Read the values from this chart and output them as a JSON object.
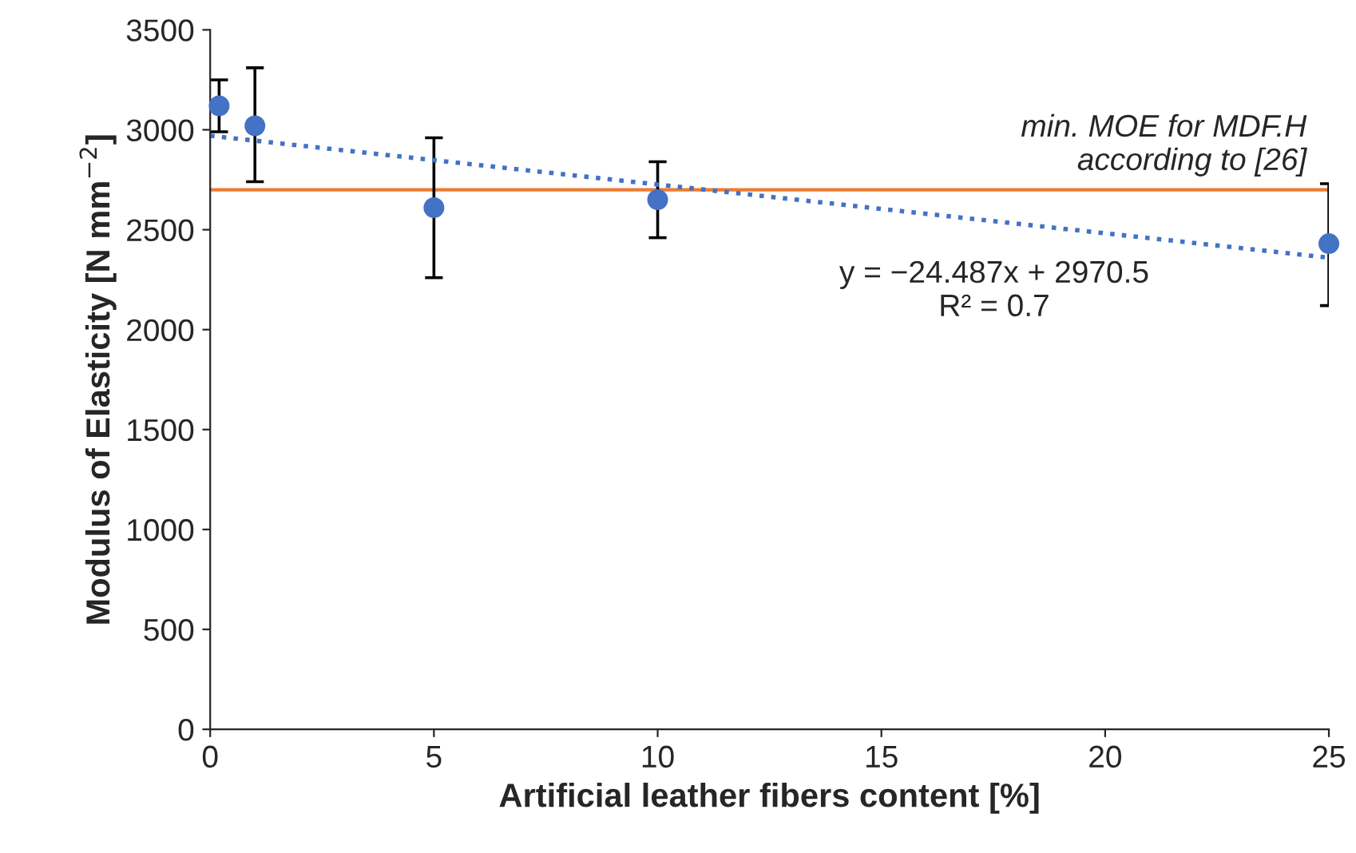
{
  "chart_data": {
    "type": "scatter",
    "xlabel": "Artificial leather fibers content [%]",
    "ylabel": "Modulus of Elasticity [N mm$^{−2}$]",
    "x": [
      0.2,
      1,
      5,
      10,
      25
    ],
    "series": [
      {
        "color": "#4472c4",
        "marker": "circle",
        "values": [
          3120,
          3020,
          2610,
          2650,
          2430
        ],
        "errors": [
          [
            2990,
            3250
          ],
          [
            2740,
            3310
          ],
          [
            2260,
            2960
          ],
          [
            2460,
            2840
          ],
          [
            2120,
            2730
          ]
        ]
      },
      {
        "type": "line",
        "color": "#4472c4",
        "x": [
          0,
          25
        ],
        "values": [
          2970,
          2360
        ],
        "line_style": "dotted",
        "marker": "none"
      }
    ],
    "ref_lines": [
      {
        "axis": "y",
        "value": 2700,
        "label": "min. MOE for MDF.H\naccording to [26]",
        "color": "#ed7d31"
      }
    ],
    "annotations": [
      {
        "text": "y = −24.487x + 2970.5\nR² = 0.7",
        "x": 20,
        "y": 2481
      }
    ],
    "xlim": [
      0,
      25
    ],
    "xticks": [
      0,
      5,
      10,
      15,
      20,
      25
    ],
    "ylim": [
      0,
      3500
    ],
    "yticks": [
      0,
      500,
      1000,
      1500,
      2000,
      2500,
      3000,
      3500
    ],
    "grid": false,
    "legend": false
  }
}
